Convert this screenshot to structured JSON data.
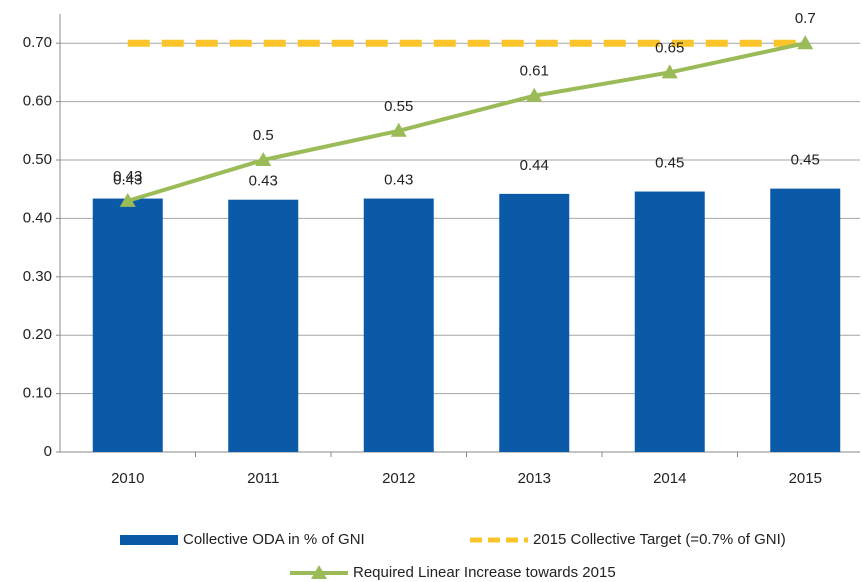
{
  "chart_data": {
    "type": "bar",
    "categories": [
      "2010",
      "2011",
      "2012",
      "2013",
      "2014",
      "2015"
    ],
    "series": [
      {
        "name": "Collective ODA in % of GNI",
        "type": "bar",
        "color": "#0b5aa8",
        "values": [
          0.434,
          0.432,
          0.434,
          0.442,
          0.446,
          0.451
        ],
        "value_labels": [
          "0.43",
          "0.43",
          "0.43",
          "0.44",
          "0.45",
          "0.45"
        ]
      },
      {
        "name": "2015 Collective Target (=0.7% of GNI)",
        "type": "line",
        "dashed": true,
        "color": "#fcc42b",
        "values": [
          0.7,
          0.7,
          0.7,
          0.7,
          0.7,
          0.7
        ]
      },
      {
        "name": "Required Linear Increase towards 2015",
        "type": "line",
        "marker": "triangle",
        "show_labels": true,
        "color": "#9bbb59",
        "values": [
          0.43,
          0.5,
          0.55,
          0.61,
          0.65,
          0.7
        ]
      }
    ],
    "ylim": [
      0,
      0.75
    ],
    "yticks": [
      0,
      {
        "value": 0.1,
        "label": "0.10"
      },
      {
        "value": 0.2,
        "label": "0.20"
      },
      {
        "value": 0.3,
        "label": "0.30"
      },
      {
        "value": 0.4,
        "label": "0.40"
      },
      {
        "value": 0.5,
        "label": "0.50"
      },
      {
        "value": 0.6,
        "label": "0.60"
      },
      {
        "value": 0.7,
        "label": "0.70"
      }
    ],
    "grid": true
  }
}
